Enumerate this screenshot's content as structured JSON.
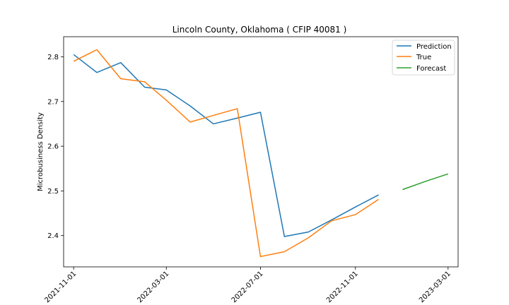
{
  "chart_data": {
    "type": "line",
    "title": "Lincoln County, Oklahoma ( CFIP 40081 )",
    "xlabel": "",
    "ylabel": "Microbusiness Density",
    "xlim": [
      "2021-10-19",
      "2023-03-14"
    ],
    "ylim": [
      2.33,
      2.845
    ],
    "x_ticks": [
      "2021-11-01",
      "2022-03-01",
      "2022-07-01",
      "2022-11-01",
      "2023-03-01"
    ],
    "y_ticks": [
      2.4,
      2.5,
      2.6,
      2.7,
      2.8
    ],
    "y_tick_labels": [
      "2.4",
      "2.5",
      "2.6",
      "2.7",
      "2.8"
    ],
    "legend_position": "top-right",
    "grid": false,
    "series": [
      {
        "name": "Prediction",
        "color": "#1f77b4",
        "x": [
          "2021-11-01",
          "2021-12-01",
          "2022-01-01",
          "2022-02-01",
          "2022-03-01",
          "2022-04-01",
          "2022-05-01",
          "2022-06-01",
          "2022-07-01",
          "2022-08-01",
          "2022-09-01",
          "2022-10-01",
          "2022-11-01",
          "2022-12-01"
        ],
        "values": [
          2.805,
          2.765,
          2.787,
          2.732,
          2.726,
          2.69,
          2.65,
          2.663,
          2.676,
          2.398,
          2.408,
          2.435,
          2.464,
          2.491
        ]
      },
      {
        "name": "True",
        "color": "#ff7f0e",
        "x": [
          "2021-11-01",
          "2021-12-01",
          "2022-01-01",
          "2022-02-01",
          "2022-03-01",
          "2022-04-01",
          "2022-05-01",
          "2022-06-01",
          "2022-07-01",
          "2022-08-01",
          "2022-09-01",
          "2022-10-01",
          "2022-11-01",
          "2022-12-01"
        ],
        "values": [
          2.79,
          2.816,
          2.751,
          2.744,
          2.703,
          2.654,
          2.669,
          2.684,
          2.353,
          2.364,
          2.395,
          2.433,
          2.447,
          2.481
        ]
      },
      {
        "name": "Forecast",
        "color": "#2ca02c",
        "x": [
          "2023-01-01",
          "2023-02-01",
          "2023-03-01"
        ],
        "values": [
          2.503,
          2.522,
          2.538
        ]
      }
    ]
  }
}
